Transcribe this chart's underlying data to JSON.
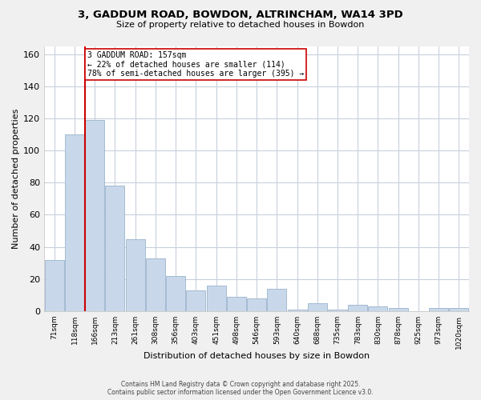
{
  "title_line1": "3, GADDUM ROAD, BOWDON, ALTRINCHAM, WA14 3PD",
  "title_line2": "Size of property relative to detached houses in Bowdon",
  "xlabel": "Distribution of detached houses by size in Bowdon",
  "ylabel": "Number of detached properties",
  "bar_labels": [
    "71sqm",
    "118sqm",
    "166sqm",
    "213sqm",
    "261sqm",
    "308sqm",
    "356sqm",
    "403sqm",
    "451sqm",
    "498sqm",
    "546sqm",
    "593sqm",
    "640sqm",
    "688sqm",
    "735sqm",
    "783sqm",
    "830sqm",
    "878sqm",
    "925sqm",
    "973sqm",
    "1020sqm"
  ],
  "bar_values": [
    32,
    110,
    119,
    78,
    45,
    33,
    22,
    13,
    16,
    9,
    8,
    14,
    1,
    5,
    1,
    4,
    3,
    2,
    0,
    2,
    2
  ],
  "bar_color": "#c8d8ea",
  "bar_edge_color": "#9ab4cc",
  "ylim": [
    0,
    165
  ],
  "yticks": [
    0,
    20,
    40,
    60,
    80,
    100,
    120,
    140,
    160
  ],
  "property_line_color": "#cc0000",
  "annotation_text": "3 GADDUM ROAD: 157sqm\n← 22% of detached houses are smaller (114)\n78% of semi-detached houses are larger (395) →",
  "annotation_box_color": "#ffffff",
  "annotation_box_edge_color": "#cc0000",
  "footer_line1": "Contains HM Land Registry data © Crown copyright and database right 2025.",
  "footer_line2": "Contains public sector information licensed under the Open Government Licence v3.0.",
  "background_color": "#f0f0f0",
  "plot_background_color": "#ffffff",
  "grid_color": "#c8d0dc"
}
